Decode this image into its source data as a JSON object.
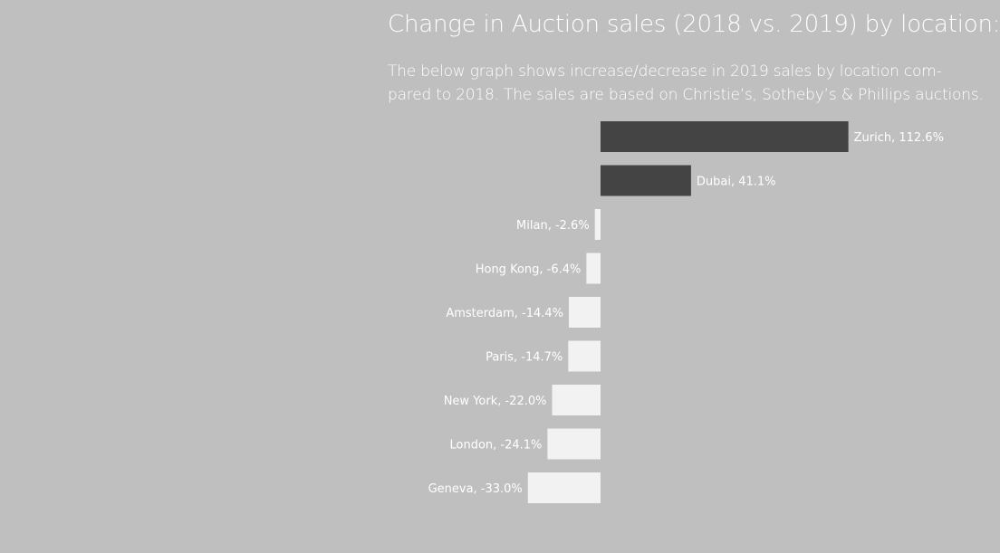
{
  "title": "Change in Auction sales (2018 vs. 2019) by location:",
  "subtitle_lines": [
    "The below graph shows increase/decrease in 2019 sales by location com-",
    "pared to 2018. The sales are based on Christie’s, Sotheby’s & Phillips auctions."
  ],
  "colors": {
    "background": "#bfbfbf",
    "positive": "#434443",
    "negative": "#f2f2f2",
    "text": "#ffffff"
  },
  "chart_data": {
    "type": "bar",
    "orientation": "horizontal",
    "unit": "%",
    "categories": [
      "Zurich",
      "Dubai",
      "Milan",
      "Hong Kong",
      "Amsterdam",
      "Paris",
      "New York",
      "London",
      "Geneva"
    ],
    "values": [
      112.6,
      41.1,
      -2.6,
      -6.4,
      -14.4,
      -14.7,
      -22.0,
      -24.1,
      -33.0
    ],
    "data_labels": [
      "Zurich, 112.6%",
      "Dubai, 41.1%",
      "Milan, -2.6%",
      "Hong Kong, -6.4%",
      "Amsterdam, -14.4%",
      "Paris, -14.7%",
      "New York, -22.0%",
      "London, -24.1%",
      "Geneva, -33.0%"
    ],
    "xlim": [
      -33.0,
      112.6
    ],
    "grid": false,
    "legend": "none"
  }
}
